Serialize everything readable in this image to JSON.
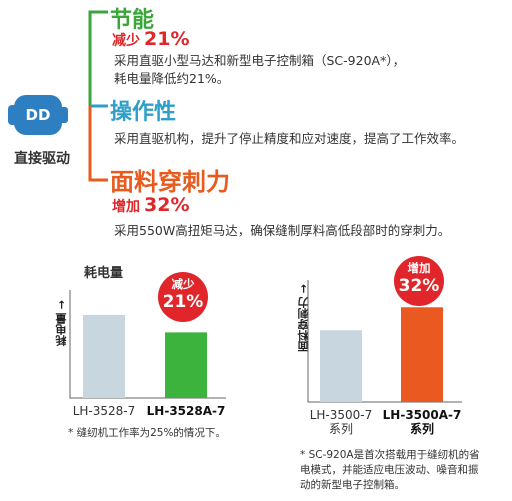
{
  "motor": {
    "label": "DD",
    "caption": "直接驱动",
    "color": "#2d7fc1"
  },
  "features": [
    {
      "title": "节能",
      "sub_small": "减少",
      "sub_big": "21%",
      "desc_lines": [
        "采用直驱小型马达和新型电子控制箱（SC-920A*），",
        "耗电量降低约21%。"
      ],
      "color": "#3aa63a"
    },
    {
      "title": "操作性",
      "desc_lines": [
        "采用直驱机构，提升了停止精度和应对速度，提高了工作效率。"
      ],
      "color": "#2d9fc8"
    },
    {
      "title": "面料穿刺力",
      "sub_small": "增加",
      "sub_big": "32%",
      "desc_lines": [
        "采用550W高扭矩马达，确保缝制厚料高低段部时的穿刺力。"
      ],
      "color": "#e85a1e"
    }
  ],
  "chart_data": [
    {
      "type": "bar",
      "title": "耗电量",
      "ylabel": "耗电量 →",
      "categories": [
        "LH-3528-7",
        "LH-3528A-7"
      ],
      "values": [
        100,
        79
      ],
      "ylim": [
        0,
        130
      ],
      "bar_colors": [
        "#c8d6df",
        "#3cb33c"
      ],
      "badge": {
        "small": "减少",
        "big": "21%"
      },
      "note_lines": [
        "* 缝纫机工作率为25%的情况下。"
      ]
    },
    {
      "type": "bar",
      "title": "",
      "ylabel": "面料穿刺力 →",
      "categories": [
        "LH-3500-7 系列",
        "LH-3500A-7 系列"
      ],
      "category_lines": [
        [
          "LH-3500-7",
          "系列"
        ],
        [
          "LH-3500A-7",
          "系列"
        ]
      ],
      "values": [
        100,
        132
      ],
      "ylim": [
        0,
        170
      ],
      "bar_colors": [
        "#c8d6df",
        "#ea5a20"
      ],
      "badge": {
        "small": "增加",
        "big": "32%"
      },
      "note_lines": [
        "* SC-920A是首次搭载用于缝纫机的省",
        "电模式，并能适应电压波动、噪音和振",
        "动的新型电子控制箱。"
      ]
    }
  ]
}
